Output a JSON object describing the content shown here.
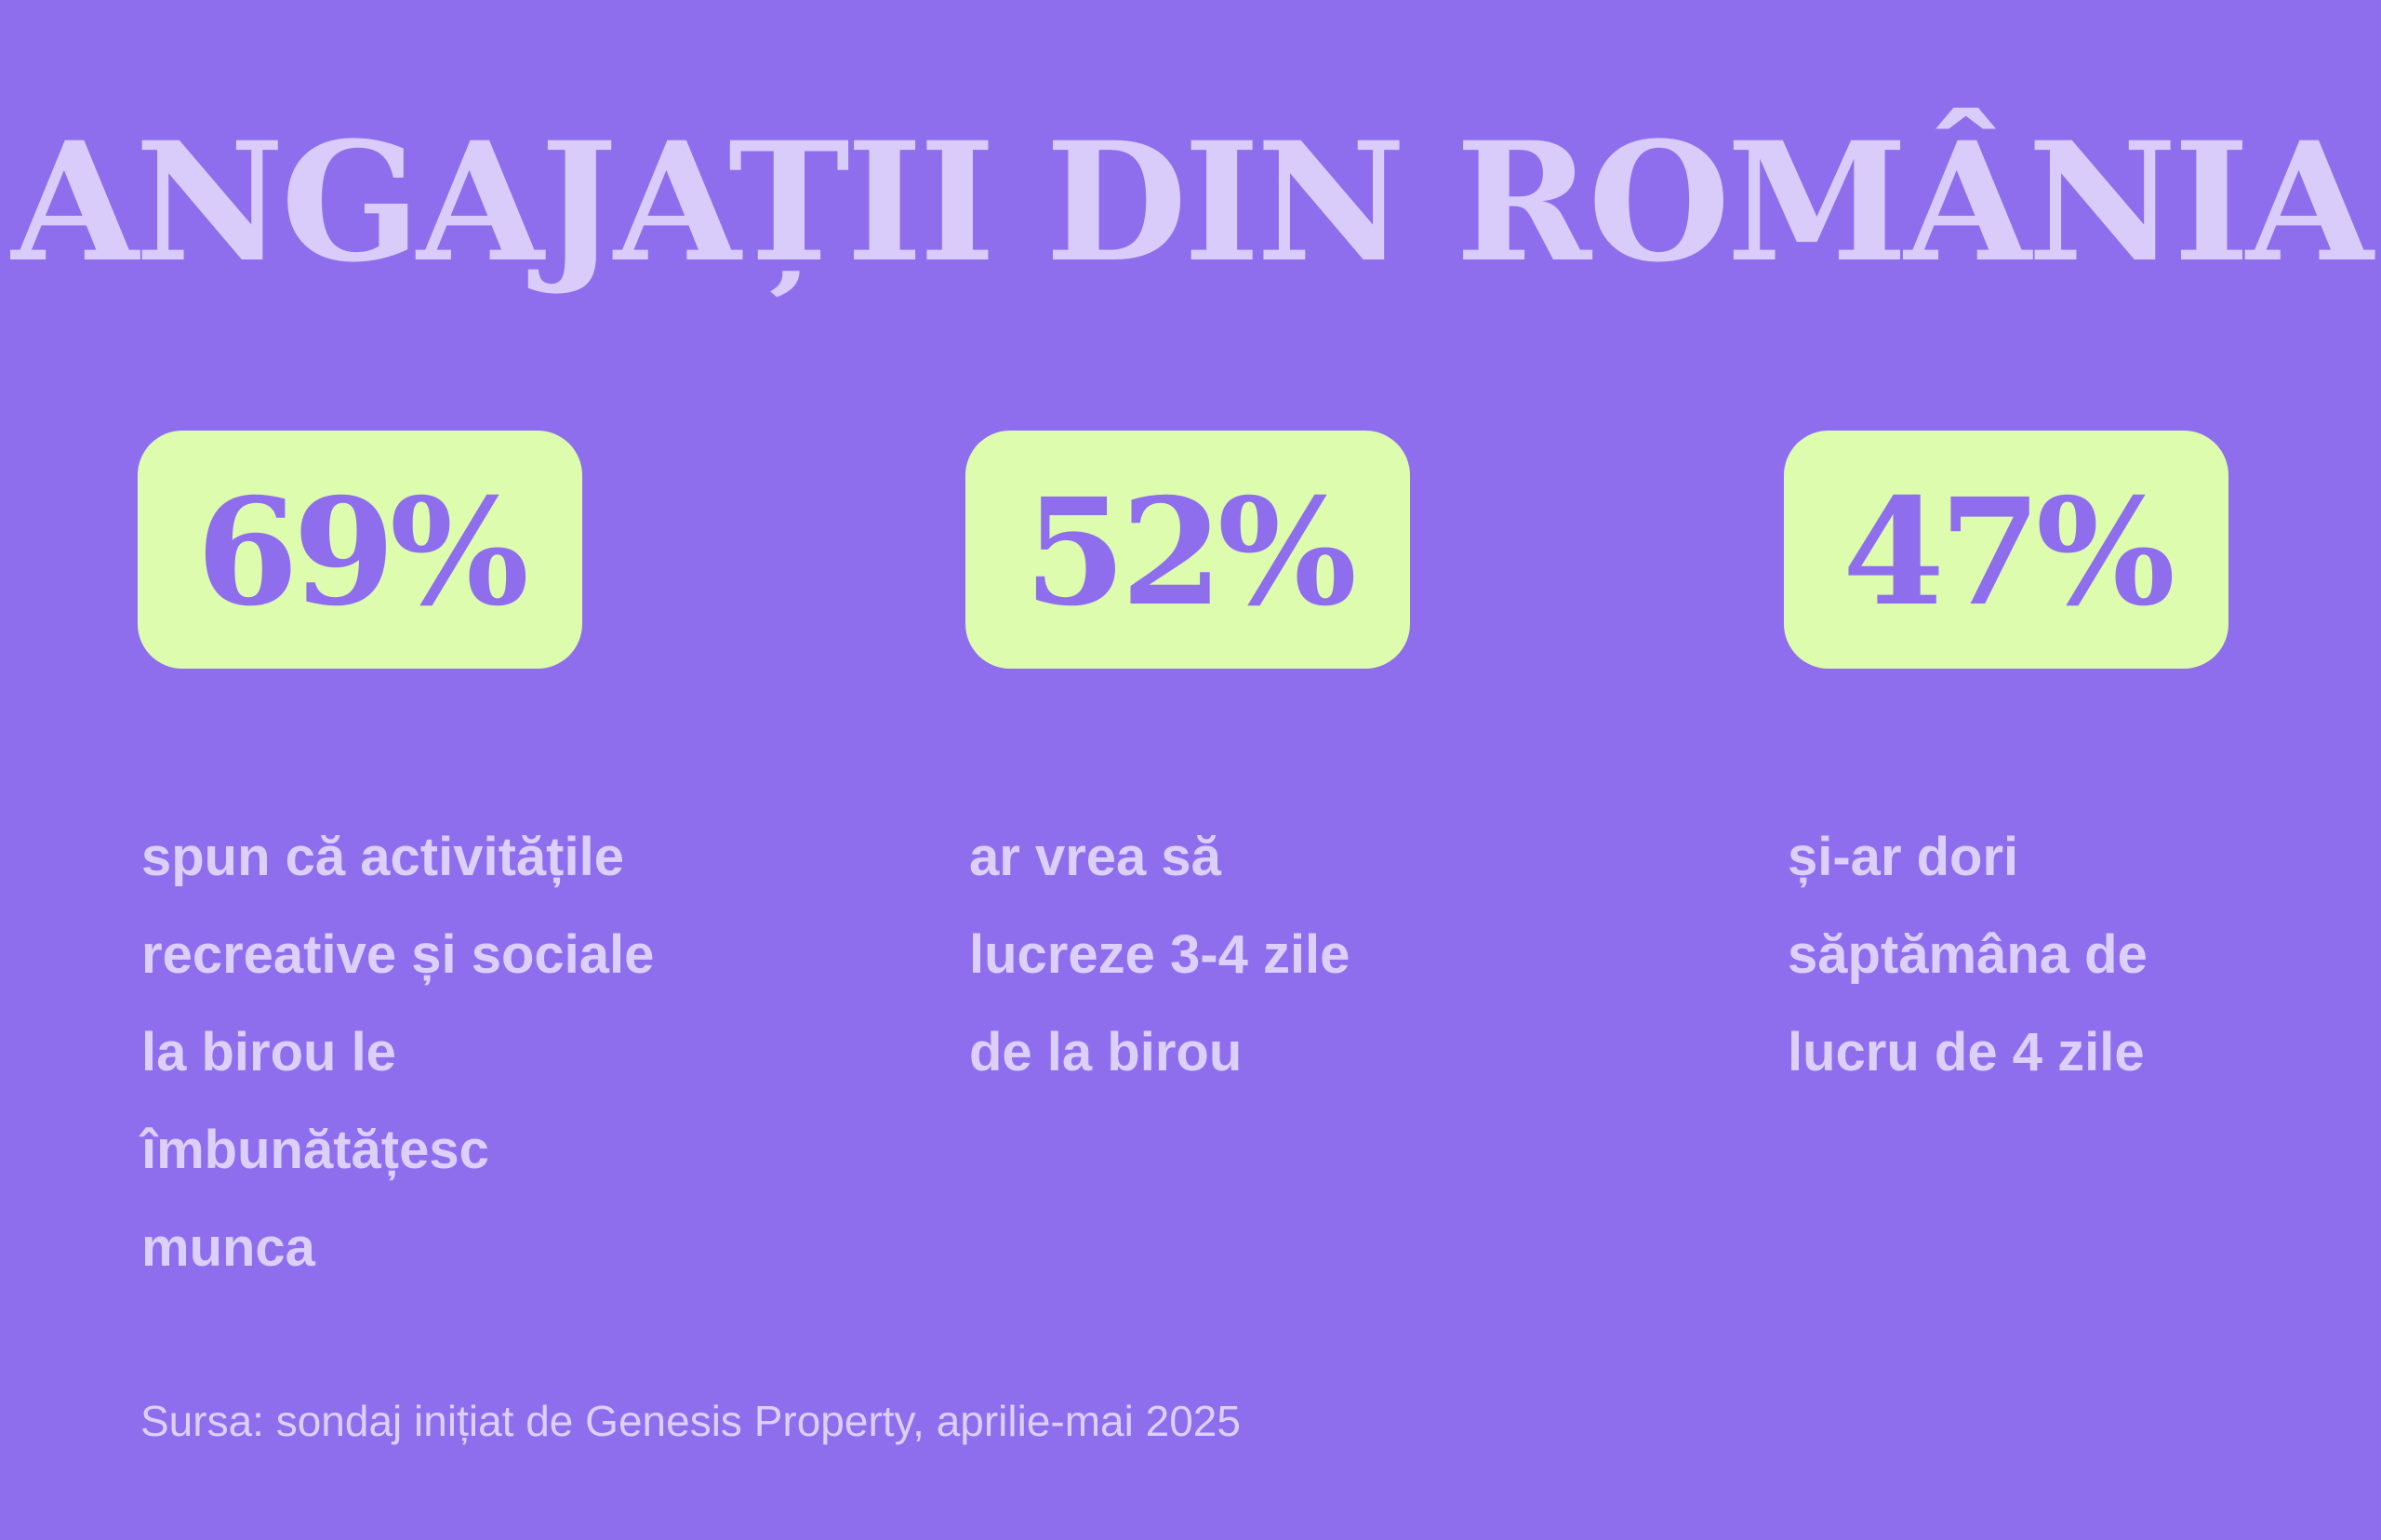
{
  "title": "ANGAJAȚII DIN ROMÂNIA",
  "stats": [
    {
      "value": "69%",
      "lines": [
        "spun că activitățile",
        "recreative și sociale",
        "la birou le",
        "îmbunătățesc",
        "munca"
      ]
    },
    {
      "value": "52%",
      "lines": [
        "ar vrea să",
        "lucreze 3-4 zile",
        "de la birou"
      ]
    },
    {
      "value": "47%",
      "lines": [
        "și-ar dori",
        "săptămâna de",
        "lucru de 4 zile"
      ]
    }
  ],
  "source": "Sursa: sondaj inițiat de Genesis Property, aprilie-mai 2025",
  "colors": {
    "background": "#8f6eee",
    "pill": "#ddfcae",
    "text_light": "#dcd0fb",
    "title": "#d9ccfb"
  }
}
